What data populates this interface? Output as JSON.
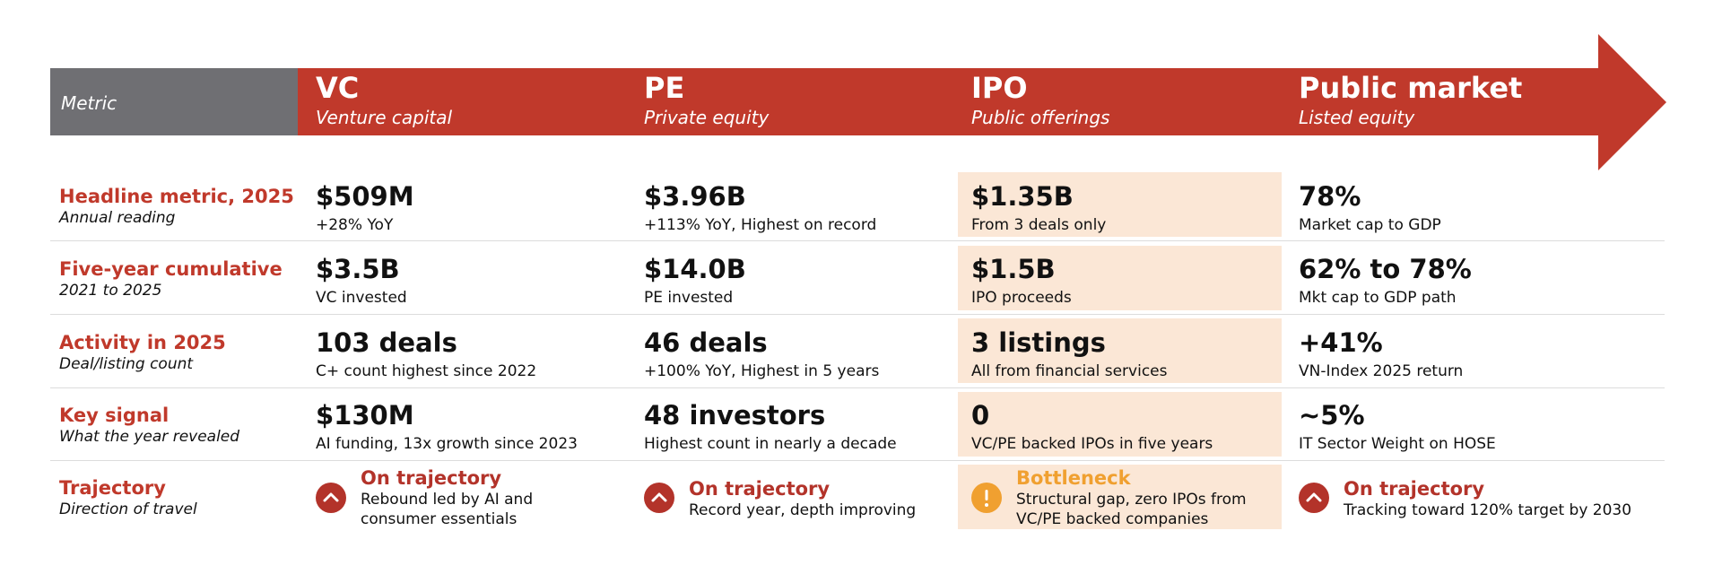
{
  "colors": {
    "accent": "#c0392b",
    "header_gray": "#6f6f73",
    "highlight": "#fbe7d6",
    "warning": "#f0a030"
  },
  "header": {
    "metric_label": "Metric",
    "columns": [
      {
        "title": "VC",
        "subtitle": "Venture capital"
      },
      {
        "title": "PE",
        "subtitle": "Private equity"
      },
      {
        "title": "IPO",
        "subtitle": "Public offerings"
      },
      {
        "title": "Public market",
        "subtitle": "Listed equity"
      }
    ]
  },
  "rows": [
    {
      "label": "Headline metric, 2025",
      "sublabel": "Annual reading",
      "cells": [
        {
          "value": "$509M",
          "detail": "+28% YoY"
        },
        {
          "value": "$3.96B",
          "detail": "+113% YoY, Highest on record"
        },
        {
          "value": "$1.35B",
          "detail": "From 3 deals only"
        },
        {
          "value": "78%",
          "detail": "Market cap to GDP"
        }
      ]
    },
    {
      "label": "Five-year cumulative",
      "sublabel": "2021 to 2025",
      "cells": [
        {
          "value": "$3.5B",
          "detail": "VC invested"
        },
        {
          "value": "$14.0B",
          "detail": "PE invested"
        },
        {
          "value": "$1.5B",
          "detail": "IPO proceeds"
        },
        {
          "value": "62% to 78%",
          "detail": "Mkt cap to GDP path"
        }
      ]
    },
    {
      "label": "Activity in 2025",
      "sublabel": "Deal/listing count",
      "cells": [
        {
          "value": "103 deals",
          "detail": "C+ count highest since 2022"
        },
        {
          "value": "46 deals",
          "detail": "+100% YoY, Highest in 5 years"
        },
        {
          "value": "3 listings",
          "detail": "All from financial services"
        },
        {
          "value": "+41%",
          "detail": "VN-Index 2025 return"
        }
      ]
    },
    {
      "label": "Key signal",
      "sublabel": "What the year revealed",
      "cells": [
        {
          "value": "$130M",
          "detail": "AI funding, 13x growth since 2023"
        },
        {
          "value": "48 investors",
          "detail": "Highest count in nearly a decade"
        },
        {
          "value": "0",
          "detail": "VC/PE backed IPOs in five years"
        },
        {
          "value": "~5%",
          "detail": "IT Sector Weight on HOSE"
        }
      ]
    }
  ],
  "trajectory": {
    "label": "Trajectory",
    "sublabel": "Direction of travel",
    "cells": [
      {
        "icon": "chevron-up-icon",
        "title": "On trajectory",
        "line1": "Rebound led by AI and",
        "line2": "consumer essentials"
      },
      {
        "icon": "chevron-up-icon",
        "title": "On trajectory",
        "line1": "Record year, depth improving",
        "line2": ""
      },
      {
        "icon": "exclamation-icon",
        "title": "Bottleneck",
        "line1": "Structural gap, zero IPOs from",
        "line2": "VC/PE backed companies"
      },
      {
        "icon": "chevron-up-icon",
        "title": "On trajectory",
        "line1": "Tracking toward 120% target by 2030",
        "line2": ""
      }
    ]
  }
}
